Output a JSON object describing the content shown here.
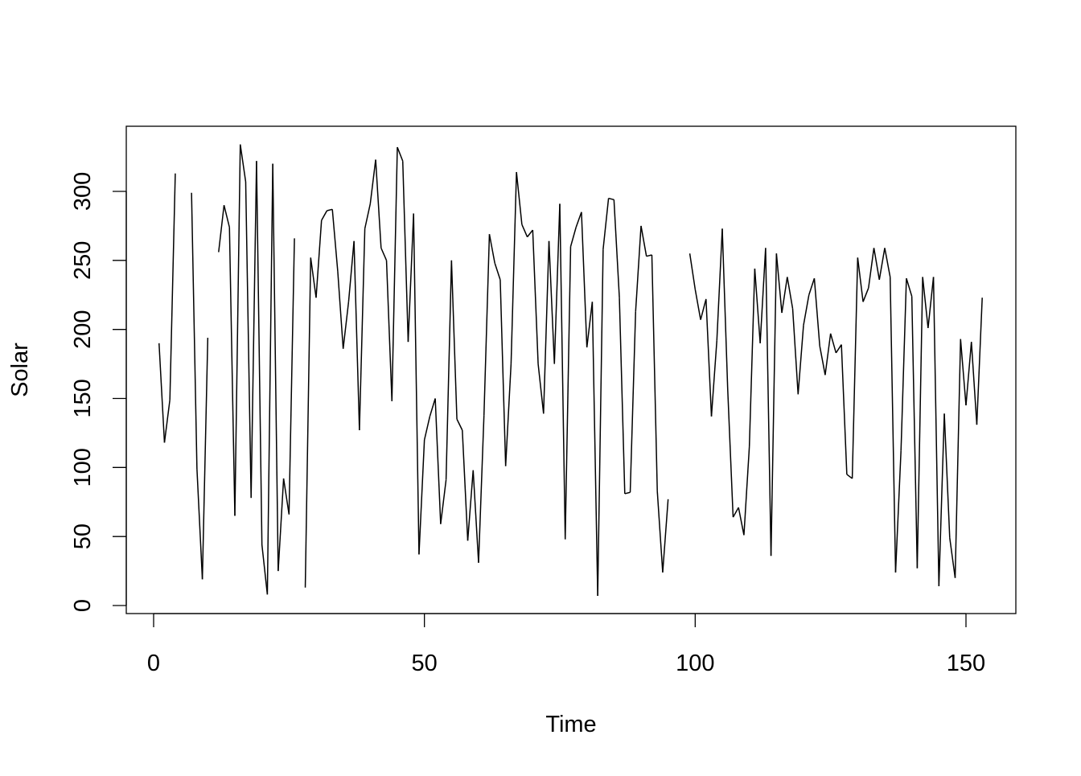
{
  "chart_data": {
    "type": "line",
    "title": "",
    "xlabel": "Time",
    "ylabel": "Solar",
    "xlim": [
      0,
      155
    ],
    "ylim": [
      0,
      335
    ],
    "xticks": [
      0,
      50,
      100,
      150
    ],
    "yticks": [
      0,
      50,
      100,
      150,
      200,
      250,
      300
    ],
    "grid": false,
    "x_start": 1,
    "values": [
      190,
      118,
      149,
      313,
      null,
      null,
      299,
      99,
      19,
      194,
      null,
      256,
      290,
      274,
      65,
      334,
      307,
      78,
      322,
      44,
      8,
      320,
      25,
      92,
      66,
      266,
      null,
      13,
      252,
      223,
      279,
      286,
      287,
      242,
      186,
      220,
      264,
      127,
      273,
      291,
      323,
      259,
      250,
      148,
      332,
      322,
      191,
      284,
      37,
      120,
      137,
      150,
      59,
      91,
      250,
      135,
      127,
      47,
      98,
      31,
      138,
      269,
      248,
      236,
      101,
      175,
      314,
      276,
      267,
      272,
      175,
      139,
      264,
      175,
      291,
      48,
      260,
      274,
      285,
      187,
      220,
      7,
      258,
      295,
      294,
      223,
      81,
      82,
      213,
      275,
      253,
      254,
      83,
      24,
      77,
      null,
      null,
      null,
      255,
      229,
      207,
      222,
      137,
      192,
      273,
      157,
      64,
      71,
      51,
      115,
      244,
      190,
      259,
      36,
      255,
      212,
      238,
      215,
      153,
      203,
      225,
      237,
      188,
      167,
      197,
      183,
      189,
      95,
      92,
      252,
      220,
      230,
      259,
      236,
      259,
      238,
      24,
      112,
      237,
      224,
      27,
      238,
      201,
      238,
      14,
      139,
      49,
      20,
      193,
      145,
      191,
      131,
      223
    ],
    "line_color": "#000000"
  }
}
